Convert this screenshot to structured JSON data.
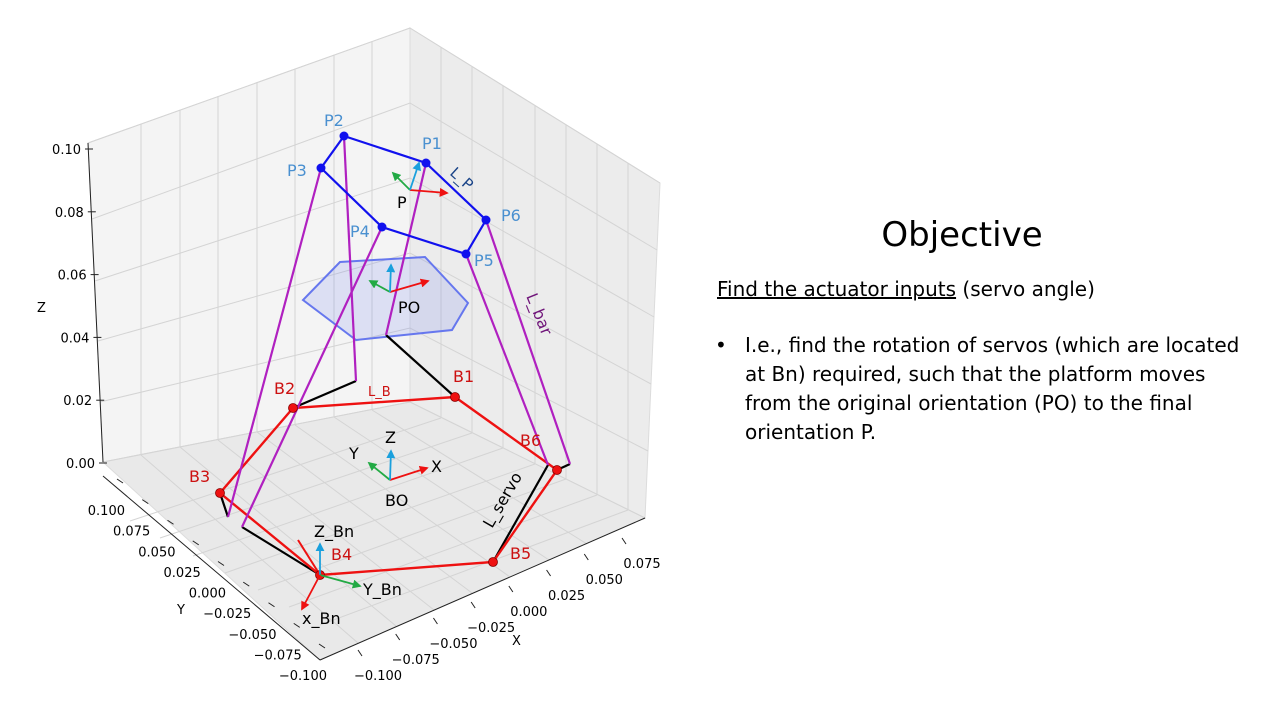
{
  "colors": {
    "platform": "#1111ee",
    "original_platform": "#6677ee",
    "base": "#ee1111",
    "bar": "#b020c0",
    "servo_arm": "#000000",
    "point_label_blue": "#4a90d0",
    "point_label_red": "#cc1111",
    "axis_x": "#ee1111",
    "axis_y": "#22aa44",
    "axis_z": "#1aa0dd"
  },
  "axes": {
    "z_label": "Z",
    "y_label": "Y",
    "x_label": "X",
    "z_ticks": [
      "0.00",
      "0.02",
      "0.04",
      "0.06",
      "0.08",
      "0.10"
    ],
    "y_ticks": [
      "0.100",
      "0.075",
      "0.050",
      "0.025",
      "0.000",
      "−0.025",
      "−0.050",
      "−0.075",
      "−0.100"
    ],
    "x_ticks": [
      "−0.100",
      "−0.075",
      "−0.050",
      "−0.025",
      "0.000",
      "0.025",
      "0.050",
      "0.075"
    ]
  },
  "points": {
    "platform": [
      "P1",
      "P2",
      "P3",
      "P4",
      "P5",
      "P6"
    ],
    "base": [
      "B1",
      "B2",
      "B3",
      "B4",
      "B5",
      "B6"
    ]
  },
  "labels": {
    "p": "P",
    "po": "PO",
    "bo": "BO",
    "l_p": "L_P",
    "l_bar": "L_bar",
    "l_b": "L_B",
    "l_servo": "L_servo",
    "frame_z": "Z",
    "frame_y": "Y",
    "frame_x": "X",
    "z_bn": "Z_Bn",
    "y_bn": "Y_Bn",
    "x_bn": "x_Bn"
  },
  "panel": {
    "title": "Objective",
    "subtitle_underlined": "Find the actuator inputs",
    "subtitle_rest": " (servo angle)",
    "bullet_marker": "•",
    "bullet_text": "I.e., find the rotation of servos (which are located at Bn) required, such that the platform moves from the original orientation (PO) to the final orientation P."
  }
}
